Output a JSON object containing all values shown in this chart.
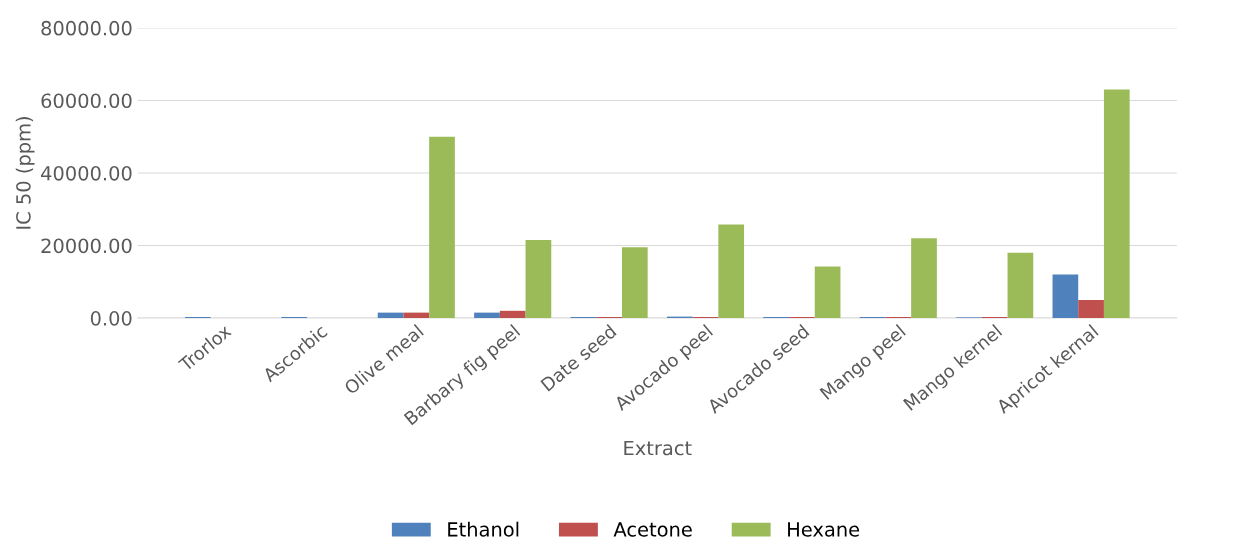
{
  "chart_data": {
    "type": "bar",
    "xlabel": "Extract",
    "ylabel": "IC 50 (ppm)",
    "categories": [
      "Trorlox",
      "Ascorbic",
      "Olive meal",
      "Barbary fig peel",
      "Date seed",
      "Avocado peel",
      "Avocado seed",
      "Mango peel",
      "Mango kernel",
      "Apricot kernal"
    ],
    "series": [
      {
        "name": "Ethanol",
        "color": "#4f81bd",
        "values": [
          300,
          300,
          1500,
          1500,
          300,
          400,
          300,
          300,
          200,
          12000
        ]
      },
      {
        "name": "Acetone",
        "color": "#c0504d",
        "values": [
          null,
          null,
          1500,
          2000,
          300,
          300,
          300,
          300,
          300,
          5000
        ]
      },
      {
        "name": "Hexane",
        "color": "#9bbb59",
        "values": [
          null,
          null,
          50000,
          21500,
          19500,
          25800,
          14200,
          22000,
          18000,
          63000
        ]
      }
    ],
    "ylim": [
      0,
      80000
    ],
    "yticks": [
      {
        "value": 0,
        "label": "0.00"
      },
      {
        "value": 20000,
        "label": "20000.00"
      },
      {
        "value": 40000,
        "label": "40000.00"
      },
      {
        "value": 60000,
        "label": "60000.00"
      },
      {
        "value": 80000,
        "label": "80000.00"
      }
    ],
    "grid": "y",
    "legend": "bottom"
  }
}
